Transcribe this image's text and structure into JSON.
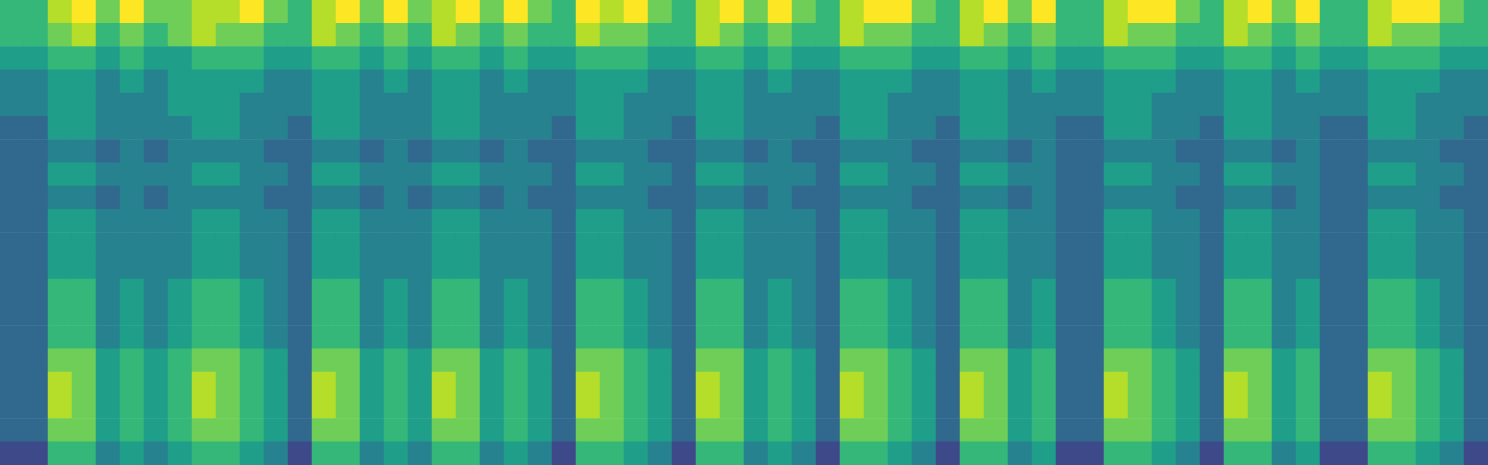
{
  "chart_data": {
    "type": "heatmap",
    "color": "viridis",
    "tick_labels": false,
    "color_range": [
      0,
      9
    ],
    "cells": [
      [
        6,
        6,
        8,
        9,
        7,
        9,
        7,
        7,
        8,
        8,
        9,
        7,
        6,
        8,
        9,
        7,
        9,
        7,
        8,
        9,
        7,
        9,
        7,
        6,
        9,
        8,
        9,
        7,
        6,
        8,
        9,
        7,
        9,
        7,
        6,
        8,
        9,
        9,
        7,
        6,
        8,
        9,
        7,
        9,
        6,
        6,
        8,
        9,
        9,
        7,
        6,
        8,
        9,
        7,
        9,
        6,
        6,
        8,
        9,
        9,
        7,
        6
      ],
      [
        6,
        6,
        7,
        8,
        6,
        7,
        6,
        7,
        8,
        7,
        7,
        6,
        6,
        8,
        7,
        6,
        7,
        6,
        8,
        7,
        6,
        7,
        6,
        6,
        8,
        7,
        7,
        6,
        6,
        8,
        7,
        6,
        7,
        6,
        6,
        8,
        7,
        7,
        6,
        6,
        8,
        7,
        6,
        7,
        6,
        6,
        8,
        7,
        7,
        6,
        6,
        8,
        7,
        6,
        7,
        6,
        6,
        8,
        7,
        7,
        6,
        6
      ],
      [
        5,
        5,
        6,
        6,
        5,
        6,
        5,
        5,
        6,
        6,
        6,
        5,
        5,
        6,
        6,
        5,
        6,
        5,
        6,
        6,
        5,
        6,
        5,
        5,
        6,
        6,
        6,
        5,
        5,
        6,
        6,
        5,
        6,
        5,
        5,
        6,
        6,
        6,
        5,
        5,
        6,
        6,
        5,
        6,
        5,
        5,
        6,
        6,
        6,
        5,
        5,
        6,
        6,
        5,
        6,
        5,
        5,
        6,
        6,
        6,
        5,
        5
      ],
      [
        4,
        4,
        5,
        5,
        4,
        5,
        4,
        5,
        5,
        5,
        5,
        4,
        4,
        5,
        5,
        4,
        5,
        4,
        5,
        5,
        4,
        5,
        4,
        4,
        5,
        5,
        5,
        4,
        4,
        5,
        5,
        4,
        5,
        4,
        4,
        5,
        5,
        5,
        4,
        4,
        5,
        5,
        4,
        5,
        4,
        4,
        5,
        5,
        5,
        4,
        4,
        5,
        5,
        4,
        5,
        4,
        4,
        5,
        5,
        5,
        4,
        4
      ],
      [
        4,
        4,
        5,
        5,
        4,
        4,
        4,
        5,
        5,
        5,
        4,
        4,
        4,
        5,
        5,
        4,
        4,
        4,
        5,
        5,
        4,
        4,
        4,
        4,
        5,
        5,
        4,
        4,
        4,
        5,
        5,
        4,
        4,
        4,
        4,
        5,
        5,
        4,
        4,
        4,
        5,
        5,
        4,
        4,
        4,
        4,
        5,
        5,
        4,
        4,
        4,
        5,
        5,
        4,
        4,
        4,
        4,
        5,
        5,
        4,
        4,
        4
      ],
      [
        3,
        3,
        5,
        5,
        4,
        4,
        4,
        4,
        5,
        5,
        4,
        4,
        3,
        5,
        5,
        4,
        4,
        4,
        5,
        5,
        4,
        4,
        4,
        3,
        5,
        5,
        4,
        4,
        3,
        5,
        5,
        4,
        4,
        4,
        3,
        5,
        5,
        4,
        4,
        3,
        5,
        5,
        4,
        4,
        3,
        3,
        5,
        5,
        4,
        4,
        3,
        5,
        5,
        4,
        4,
        3,
        3,
        5,
        5,
        4,
        4,
        3
      ],
      [
        3,
        3,
        4,
        4,
        3,
        4,
        3,
        4,
        4,
        4,
        4,
        3,
        3,
        4,
        4,
        3,
        4,
        3,
        4,
        4,
        3,
        4,
        3,
        3,
        4,
        4,
        4,
        3,
        3,
        4,
        4,
        3,
        4,
        3,
        3,
        4,
        4,
        4,
        3,
        3,
        4,
        4,
        3,
        4,
        3,
        3,
        4,
        4,
        4,
        3,
        3,
        4,
        4,
        3,
        4,
        3,
        3,
        4,
        4,
        4,
        3,
        3
      ],
      [
        3,
        3,
        5,
        5,
        4,
        4,
        4,
        4,
        5,
        5,
        4,
        4,
        3,
        5,
        5,
        4,
        4,
        4,
        5,
        5,
        4,
        4,
        4,
        3,
        5,
        5,
        4,
        4,
        3,
        5,
        5,
        4,
        4,
        4,
        3,
        5,
        5,
        4,
        4,
        3,
        5,
        5,
        4,
        4,
        3,
        3,
        5,
        5,
        4,
        4,
        3,
        5,
        5,
        4,
        4,
        3,
        3,
        5,
        5,
        4,
        4,
        3
      ],
      [
        3,
        3,
        4,
        4,
        3,
        4,
        3,
        4,
        4,
        4,
        4,
        3,
        3,
        4,
        4,
        3,
        4,
        3,
        4,
        4,
        3,
        4,
        3,
        3,
        4,
        4,
        4,
        3,
        3,
        4,
        4,
        3,
        4,
        3,
        3,
        4,
        4,
        4,
        3,
        3,
        4,
        4,
        3,
        4,
        3,
        3,
        4,
        4,
        4,
        3,
        3,
        4,
        4,
        3,
        4,
        3,
        3,
        4,
        4,
        4,
        3,
        3
      ],
      [
        3,
        3,
        5,
        5,
        4,
        4,
        4,
        4,
        5,
        5,
        4,
        4,
        3,
        5,
        5,
        4,
        4,
        4,
        5,
        5,
        4,
        4,
        4,
        3,
        5,
        5,
        4,
        4,
        3,
        5,
        5,
        4,
        4,
        4,
        3,
        5,
        5,
        4,
        4,
        3,
        5,
        5,
        4,
        4,
        3,
        3,
        5,
        5,
        4,
        4,
        3,
        5,
        5,
        4,
        4,
        3,
        3,
        5,
        5,
        4,
        4,
        3
      ],
      [
        3,
        3,
        5,
        5,
        4,
        4,
        4,
        4,
        5,
        5,
        4,
        4,
        3,
        5,
        5,
        4,
        4,
        4,
        5,
        5,
        4,
        4,
        4,
        3,
        5,
        5,
        4,
        4,
        3,
        5,
        5,
        4,
        4,
        4,
        3,
        5,
        5,
        4,
        4,
        3,
        5,
        5,
        4,
        4,
        3,
        3,
        5,
        5,
        4,
        4,
        3,
        5,
        5,
        4,
        4,
        3,
        3,
        5,
        5,
        4,
        4,
        3
      ],
      [
        3,
        3,
        5,
        5,
        4,
        4,
        4,
        4,
        5,
        5,
        4,
        4,
        3,
        5,
        5,
        4,
        4,
        4,
        5,
        5,
        4,
        4,
        4,
        3,
        5,
        5,
        4,
        4,
        3,
        5,
        5,
        4,
        4,
        4,
        3,
        5,
        5,
        4,
        4,
        3,
        5,
        5,
        4,
        4,
        3,
        3,
        5,
        5,
        4,
        4,
        3,
        5,
        5,
        4,
        4,
        3,
        3,
        5,
        5,
        4,
        4,
        3
      ],
      [
        3,
        3,
        6,
        6,
        4,
        5,
        4,
        5,
        6,
        6,
        5,
        4,
        3,
        6,
        6,
        4,
        5,
        4,
        6,
        6,
        4,
        5,
        4,
        3,
        6,
        6,
        5,
        4,
        3,
        6,
        6,
        4,
        5,
        4,
        3,
        6,
        6,
        5,
        4,
        3,
        6,
        6,
        4,
        5,
        3,
        3,
        6,
        6,
        5,
        4,
        3,
        6,
        6,
        4,
        5,
        3,
        3,
        6,
        6,
        5,
        4,
        3
      ],
      [
        3,
        3,
        6,
        6,
        4,
        5,
        4,
        5,
        6,
        6,
        5,
        4,
        3,
        6,
        6,
        4,
        5,
        4,
        6,
        6,
        4,
        5,
        4,
        3,
        6,
        6,
        5,
        4,
        3,
        6,
        6,
        4,
        5,
        4,
        3,
        6,
        6,
        5,
        4,
        3,
        6,
        6,
        4,
        5,
        3,
        3,
        6,
        6,
        5,
        4,
        3,
        6,
        6,
        4,
        5,
        3,
        3,
        6,
        6,
        5,
        4,
        3
      ],
      [
        3,
        3,
        6,
        6,
        4,
        5,
        4,
        5,
        6,
        6,
        5,
        4,
        3,
        6,
        6,
        4,
        5,
        4,
        6,
        6,
        4,
        5,
        4,
        3,
        6,
        6,
        5,
        4,
        3,
        6,
        6,
        4,
        5,
        4,
        3,
        6,
        6,
        5,
        4,
        3,
        6,
        6,
        4,
        5,
        3,
        3,
        6,
        6,
        5,
        4,
        3,
        6,
        6,
        4,
        5,
        3,
        3,
        6,
        6,
        5,
        4,
        3
      ],
      [
        3,
        3,
        7,
        7,
        5,
        6,
        5,
        6,
        7,
        7,
        6,
        5,
        3,
        7,
        7,
        5,
        6,
        5,
        7,
        7,
        5,
        6,
        5,
        3,
        7,
        7,
        6,
        5,
        3,
        7,
        7,
        5,
        6,
        5,
        3,
        7,
        7,
        6,
        5,
        3,
        7,
        7,
        5,
        6,
        3,
        3,
        7,
        7,
        6,
        5,
        3,
        7,
        7,
        5,
        6,
        3,
        3,
        7,
        7,
        6,
        5,
        3
      ],
      [
        3,
        3,
        8,
        7,
        5,
        6,
        5,
        6,
        8,
        7,
        6,
        5,
        3,
        8,
        7,
        5,
        6,
        5,
        8,
        7,
        5,
        6,
        5,
        3,
        8,
        7,
        6,
        5,
        3,
        8,
        7,
        5,
        6,
        5,
        3,
        8,
        7,
        6,
        5,
        3,
        8,
        7,
        5,
        6,
        3,
        3,
        8,
        7,
        6,
        5,
        3,
        8,
        7,
        5,
        6,
        3,
        3,
        8,
        7,
        6,
        5,
        3
      ],
      [
        3,
        3,
        8,
        7,
        5,
        6,
        5,
        6,
        8,
        7,
        6,
        5,
        3,
        8,
        7,
        5,
        6,
        5,
        8,
        7,
        5,
        6,
        5,
        3,
        8,
        7,
        6,
        5,
        3,
        8,
        7,
        5,
        6,
        5,
        3,
        8,
        7,
        6,
        5,
        3,
        8,
        7,
        5,
        6,
        3,
        3,
        8,
        7,
        6,
        5,
        3,
        8,
        7,
        5,
        6,
        3,
        3,
        8,
        7,
        6,
        5,
        3
      ],
      [
        3,
        3,
        7,
        7,
        5,
        6,
        5,
        6,
        7,
        7,
        6,
        5,
        3,
        7,
        7,
        5,
        6,
        5,
        7,
        7,
        5,
        6,
        5,
        3,
        7,
        7,
        6,
        5,
        3,
        7,
        7,
        5,
        6,
        5,
        3,
        7,
        7,
        6,
        5,
        3,
        7,
        7,
        5,
        6,
        3,
        3,
        7,
        7,
        6,
        5,
        3,
        7,
        7,
        5,
        6,
        3,
        3,
        7,
        7,
        6,
        5,
        3
      ],
      [
        2,
        2,
        6,
        6,
        4,
        5,
        4,
        5,
        6,
        6,
        5,
        4,
        2,
        6,
        6,
        4,
        5,
        4,
        6,
        6,
        4,
        5,
        4,
        2,
        6,
        6,
        5,
        4,
        2,
        6,
        6,
        4,
        5,
        4,
        2,
        6,
        6,
        5,
        4,
        2,
        6,
        6,
        4,
        5,
        2,
        2,
        6,
        6,
        5,
        4,
        2,
        6,
        6,
        4,
        5,
        2,
        2,
        6,
        6,
        5,
        4,
        2
      ]
    ]
  }
}
